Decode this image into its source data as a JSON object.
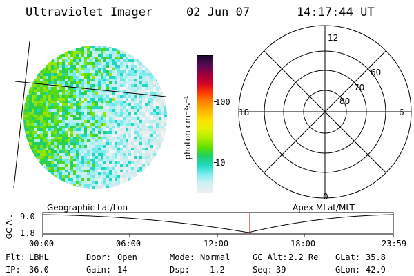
{
  "header": {
    "title": "Ultraviolet Imager",
    "date": "02 Jun 07",
    "time": "14:17:44 UT"
  },
  "colorbar": {
    "unit_label": "photon cm⁻²s⁻¹",
    "ticks": [
      "100",
      "10"
    ],
    "colors": [
      "#1a0a2e",
      "#5a0a55",
      "#9a0040",
      "#d0002a",
      "#ff3a00",
      "#ff7d00",
      "#ffb300",
      "#ffe000",
      "#e8f000",
      "#b0ee00",
      "#60e000",
      "#20d060",
      "#20d8c0",
      "#80eef0",
      "#cfeff3",
      "#eeeeee"
    ]
  },
  "polar_plot": {
    "clock_labels": {
      "top": "12",
      "left": "18",
      "right": "6",
      "bottom": "0"
    },
    "lat_labels": [
      "60",
      "70",
      "80"
    ]
  },
  "timeline": {
    "left_title": "Geographic Lat/Lon",
    "right_title": "Apex MLat/MLT",
    "y_axis_label": "GC Alt",
    "y_ticks": [
      "9.0",
      "1.8"
    ],
    "x_ticks": [
      "00:00",
      "06:00",
      "12:00",
      "18:00",
      "23:59"
    ],
    "marker_color": "#cc0000"
  },
  "info": {
    "filter_label": "Flt:",
    "filter_value": "LBHL",
    "ip_label": "IP:",
    "ip_value": "36.0",
    "door_label": "Door:",
    "door_value": "Open",
    "gain_label": "Gain:",
    "gain_value": "14",
    "mode_label": "Mode:",
    "mode_value": "Normal",
    "dsp_label": "Dsp:",
    "dsp_value": "1.2",
    "gcalt_label": "GC Alt:",
    "gcalt_value": "2.2 Re",
    "seq_label": "Seq:",
    "seq_value": "39",
    "glat_label": "GLat:",
    "glat_value": "35.8",
    "glon_label": "GLon:",
    "glon_value": "42.9"
  }
}
